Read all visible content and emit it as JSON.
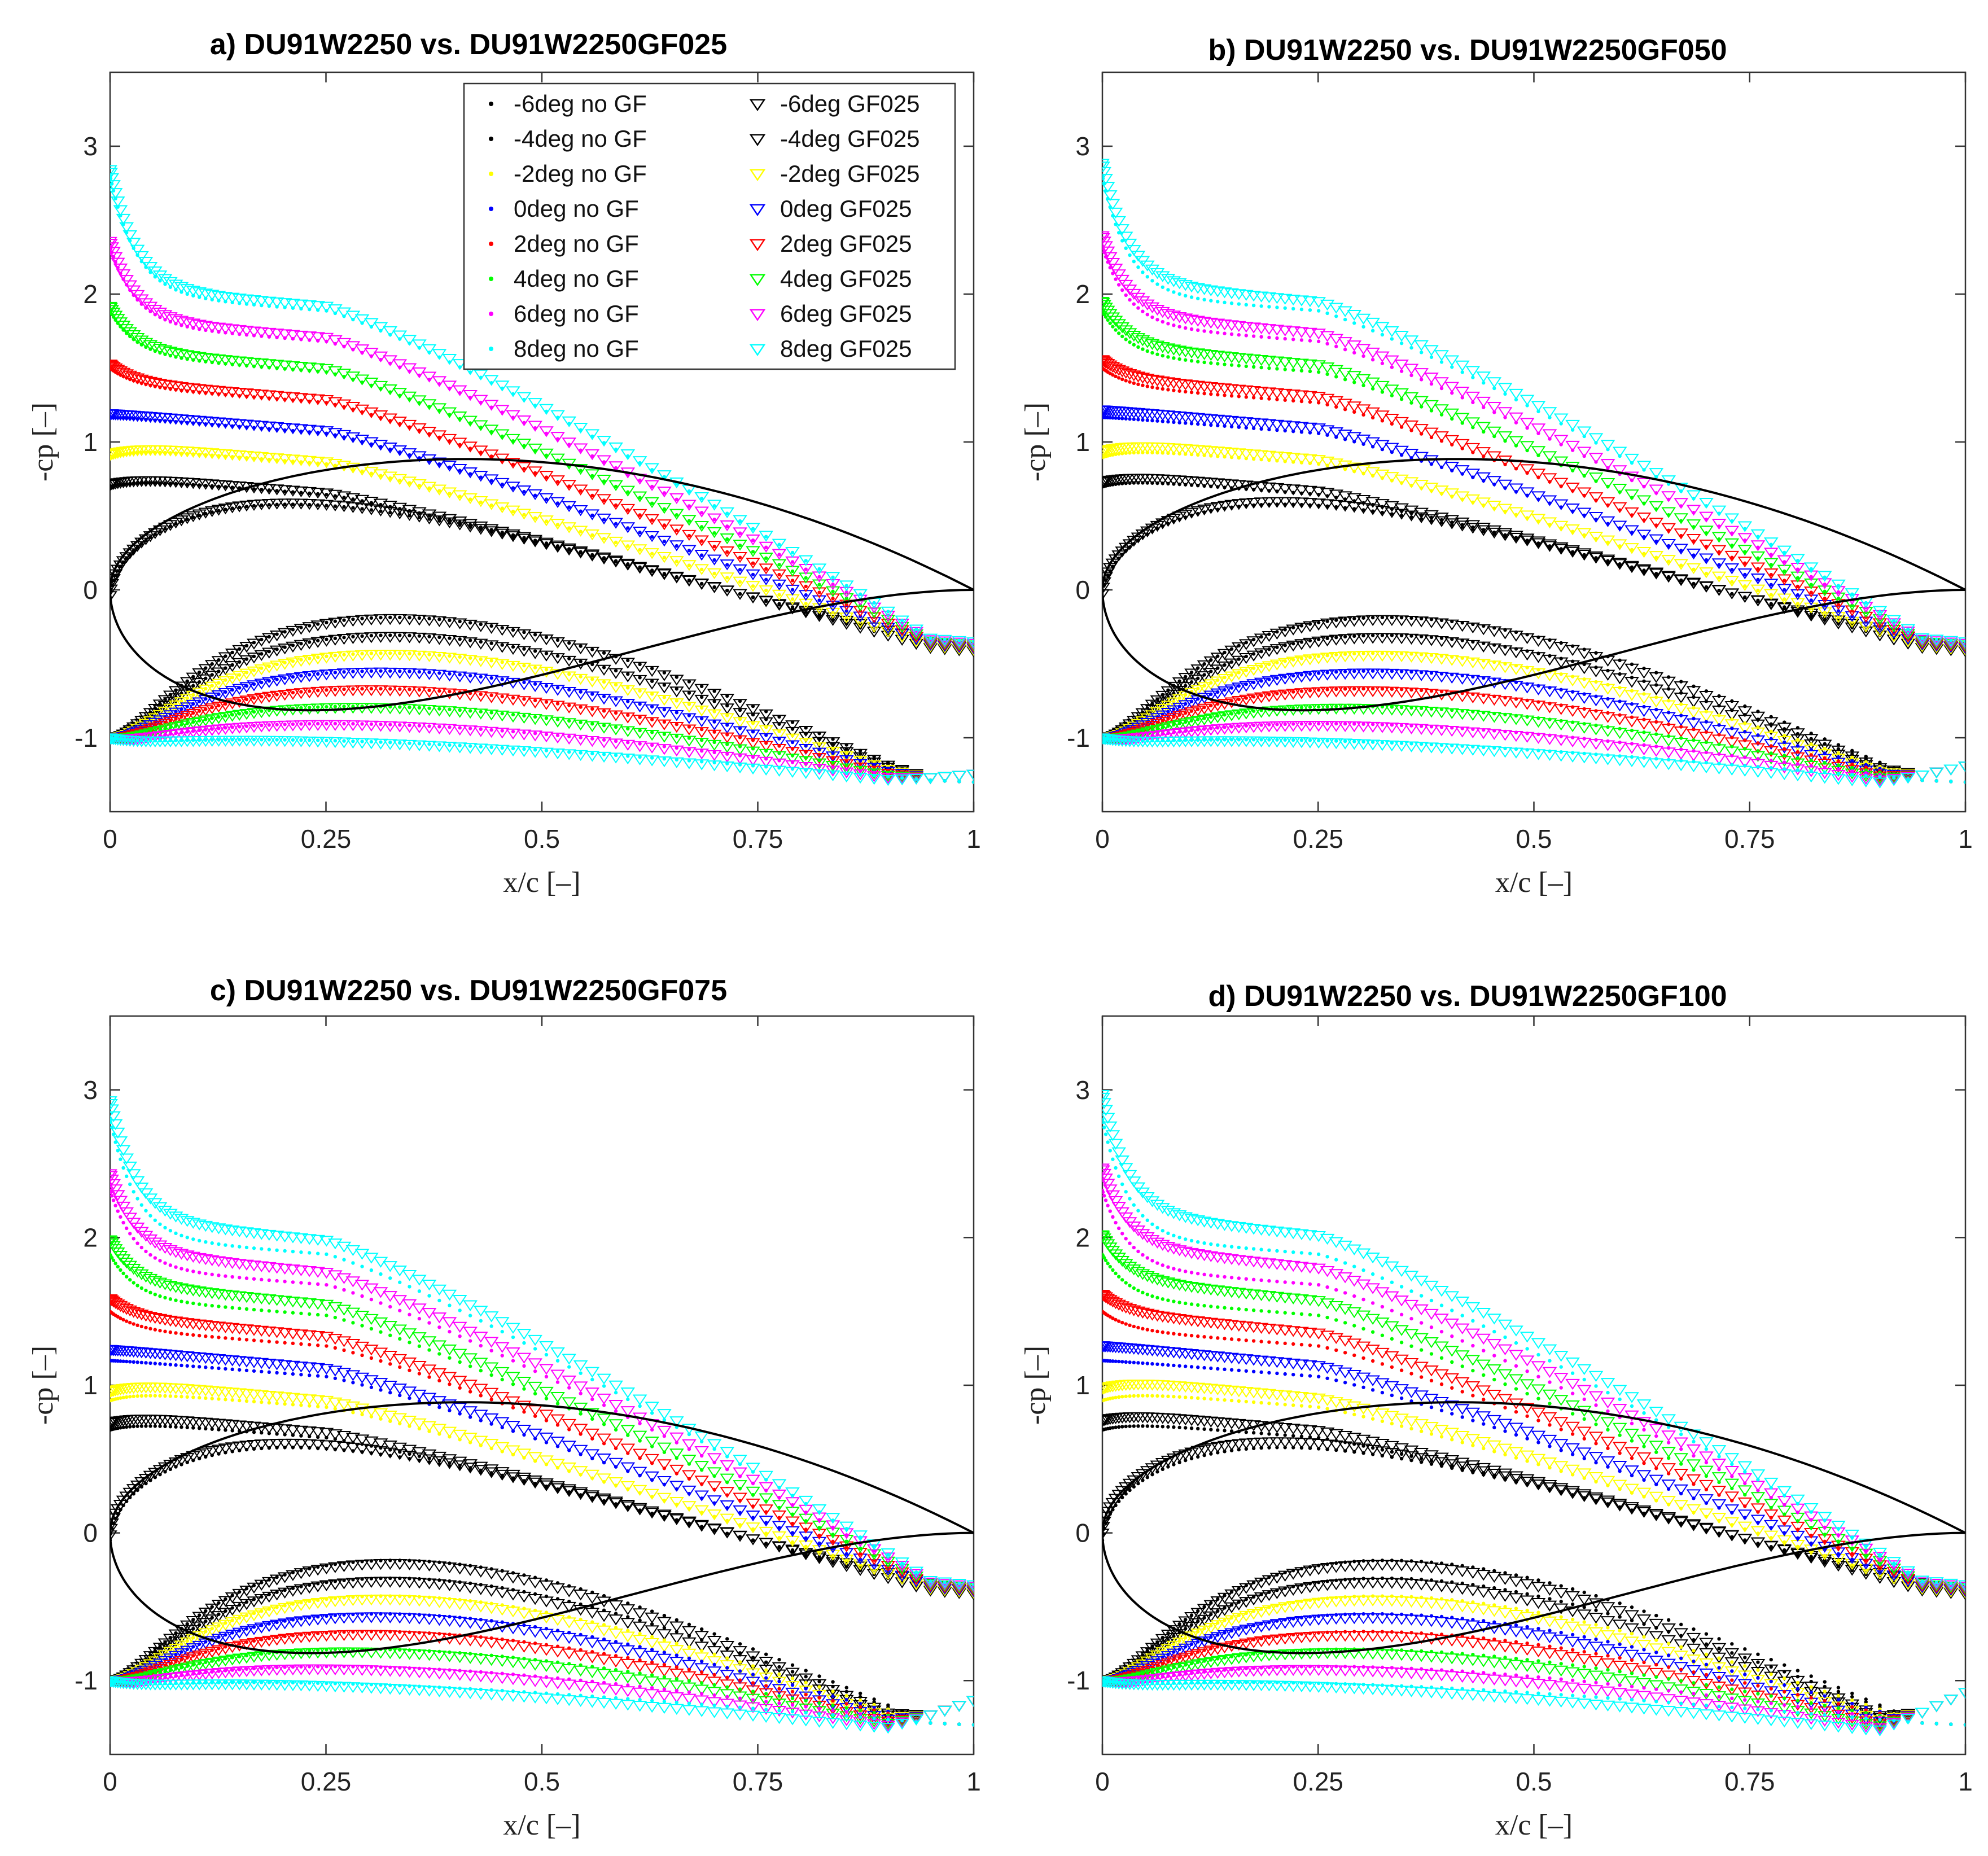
{
  "chart_data": [
    {
      "type": "scatter",
      "title": "a) DU91W2250 vs. DU91W2250GF025",
      "xlabel": "x/c [–]",
      "ylabel": "-cp [–]",
      "xlim": [
        0,
        1
      ],
      "ylim": [
        -1.5,
        3.5
      ],
      "xticks": [
        "0",
        "0.25",
        "0.5",
        "0.75",
        "1"
      ],
      "yticks": [
        "-1",
        "0",
        "1",
        "2",
        "3"
      ],
      "gf": 0.25,
      "legend": {
        "position": "top-right",
        "entries": [
          "-6deg no GF",
          "-4deg no GF",
          "-2deg no GF",
          "0deg no GF",
          "2deg no GF",
          "4deg no GF",
          "6deg no GF",
          "8deg no GF",
          "-6deg GF025",
          "-4deg GF025",
          "-2deg GF025",
          "0deg GF025",
          "2deg GF025",
          "4deg GF025",
          "6deg GF025",
          "8deg GF025"
        ]
      }
    },
    {
      "type": "scatter",
      "title": "b) DU91W2250 vs. DU91W2250GF050",
      "xlabel": "x/c [–]",
      "ylabel": "-cp [–]",
      "xlim": [
        0,
        1
      ],
      "ylim": [
        -1.5,
        3.5
      ],
      "xticks": [
        "0",
        "0.25",
        "0.5",
        "0.75",
        "1"
      ],
      "yticks": [
        "-1",
        "0",
        "1",
        "2",
        "3"
      ],
      "gf": 0.5
    },
    {
      "type": "scatter",
      "title": "c) DU91W2250 vs. DU91W2250GF075",
      "xlabel": "x/c [–]",
      "ylabel": "-cp [–]",
      "xlim": [
        0,
        1
      ],
      "ylim": [
        -1.5,
        3.5
      ],
      "xticks": [
        "0",
        "0.25",
        "0.5",
        "0.75",
        "1"
      ],
      "yticks": [
        "-1",
        "0",
        "1",
        "2",
        "3"
      ],
      "gf": 0.75
    },
    {
      "type": "scatter",
      "title": "d) DU91W2250 vs. DU91W2250GF100",
      "xlabel": "x/c [–]",
      "ylabel": "-cp [–]",
      "xlim": [
        0,
        1
      ],
      "ylim": [
        -1.5,
        3.5
      ],
      "xticks": [
        "0",
        "0.25",
        "0.5",
        "0.75",
        "1"
      ],
      "yticks": [
        "-1",
        "0",
        "1",
        "2",
        "3"
      ],
      "gf": 1.0
    }
  ],
  "series_styles": {
    "angles_deg": [
      -6,
      -4,
      -2,
      0,
      2,
      4,
      6,
      8
    ],
    "colors": [
      "#000000",
      "#000000",
      "#ffff00",
      "#0000ff",
      "#ff0000",
      "#00ff00",
      "#ff00ff",
      "#00ffff"
    ],
    "no_gf_marker": "dot",
    "gf_marker": "triangle-down-open"
  },
  "airfoil_outline": {
    "name": "DU91W2250 profile",
    "upper_peak": [
      0.3,
      0.78
    ],
    "lower_trough": [
      0.3,
      -0.72
    ]
  }
}
